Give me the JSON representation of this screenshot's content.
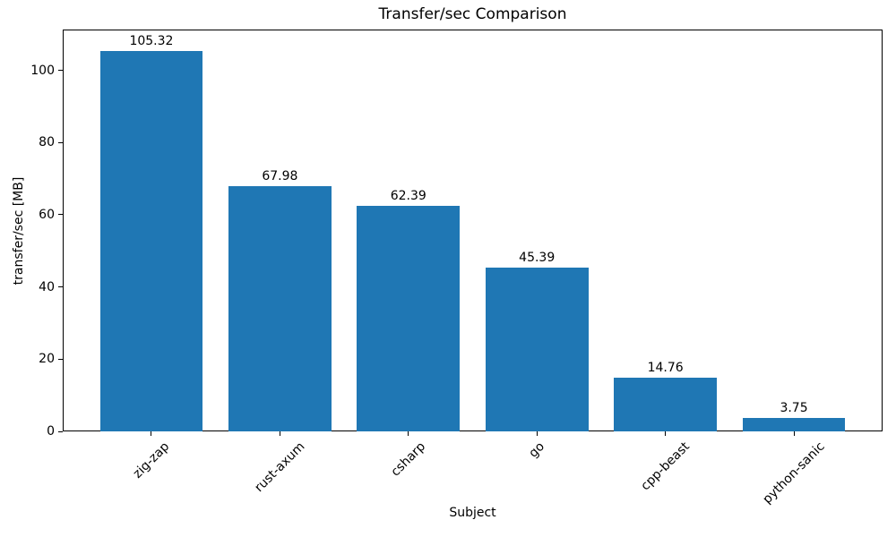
{
  "chart_data": {
    "type": "bar",
    "title": "Transfer/sec Comparison",
    "xlabel": "Subject",
    "ylabel": "transfer/sec [MB]",
    "categories": [
      "zig-zap",
      "rust-axum",
      "csharp",
      "go",
      "cpp-beast",
      "python-sanic"
    ],
    "values": [
      105.32,
      67.98,
      62.39,
      45.39,
      14.76,
      3.75
    ],
    "bar_labels": [
      "105.32",
      "67.98",
      "62.39",
      "45.39",
      "14.76",
      "3.75"
    ],
    "yticks": [
      0,
      20,
      40,
      60,
      80,
      100
    ],
    "ylim": [
      0,
      111.3
    ],
    "grid": false,
    "legend": null,
    "bar_color": "#1f77b4",
    "axis_color": "#000000",
    "text_color": "#000000",
    "background_color": "#ffffff"
  }
}
